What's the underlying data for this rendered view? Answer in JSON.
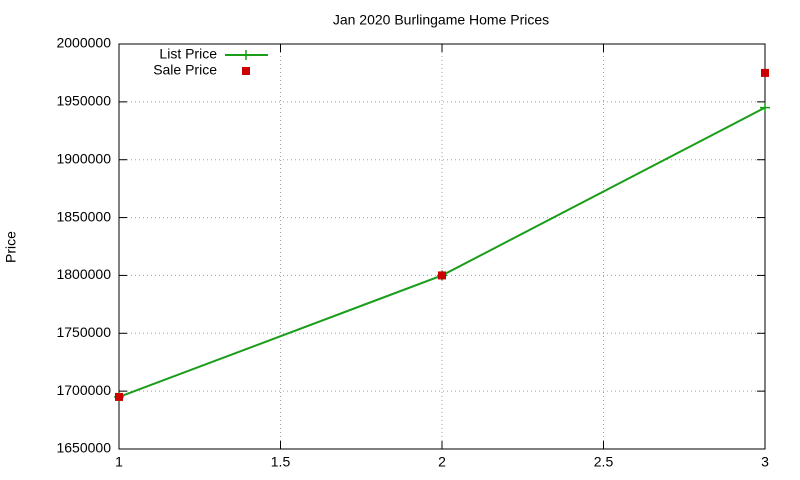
{
  "chart_data": {
    "type": "line",
    "title": "Jan 2020 Burlingame Home Prices",
    "y_label": "Price",
    "x": [
      1,
      2,
      3
    ],
    "series": [
      {
        "name": "List Price",
        "color": "#1a9e1a",
        "style": "linespoints",
        "values": [
          1695000,
          1800000,
          1945000
        ]
      },
      {
        "name": "Sale Price",
        "color": "#cc0000",
        "style": "points",
        "values": [
          1695000,
          1800000,
          1975000
        ]
      }
    ],
    "xlim": [
      1,
      3
    ],
    "xticks": [
      1,
      1.5,
      2,
      2.5,
      3
    ],
    "ylim": [
      1650000,
      2000000
    ],
    "yticks": [
      1650000,
      1700000,
      1750000,
      1800000,
      1850000,
      1900000,
      1950000,
      2000000
    ],
    "grid": true,
    "legend": "top-left"
  }
}
